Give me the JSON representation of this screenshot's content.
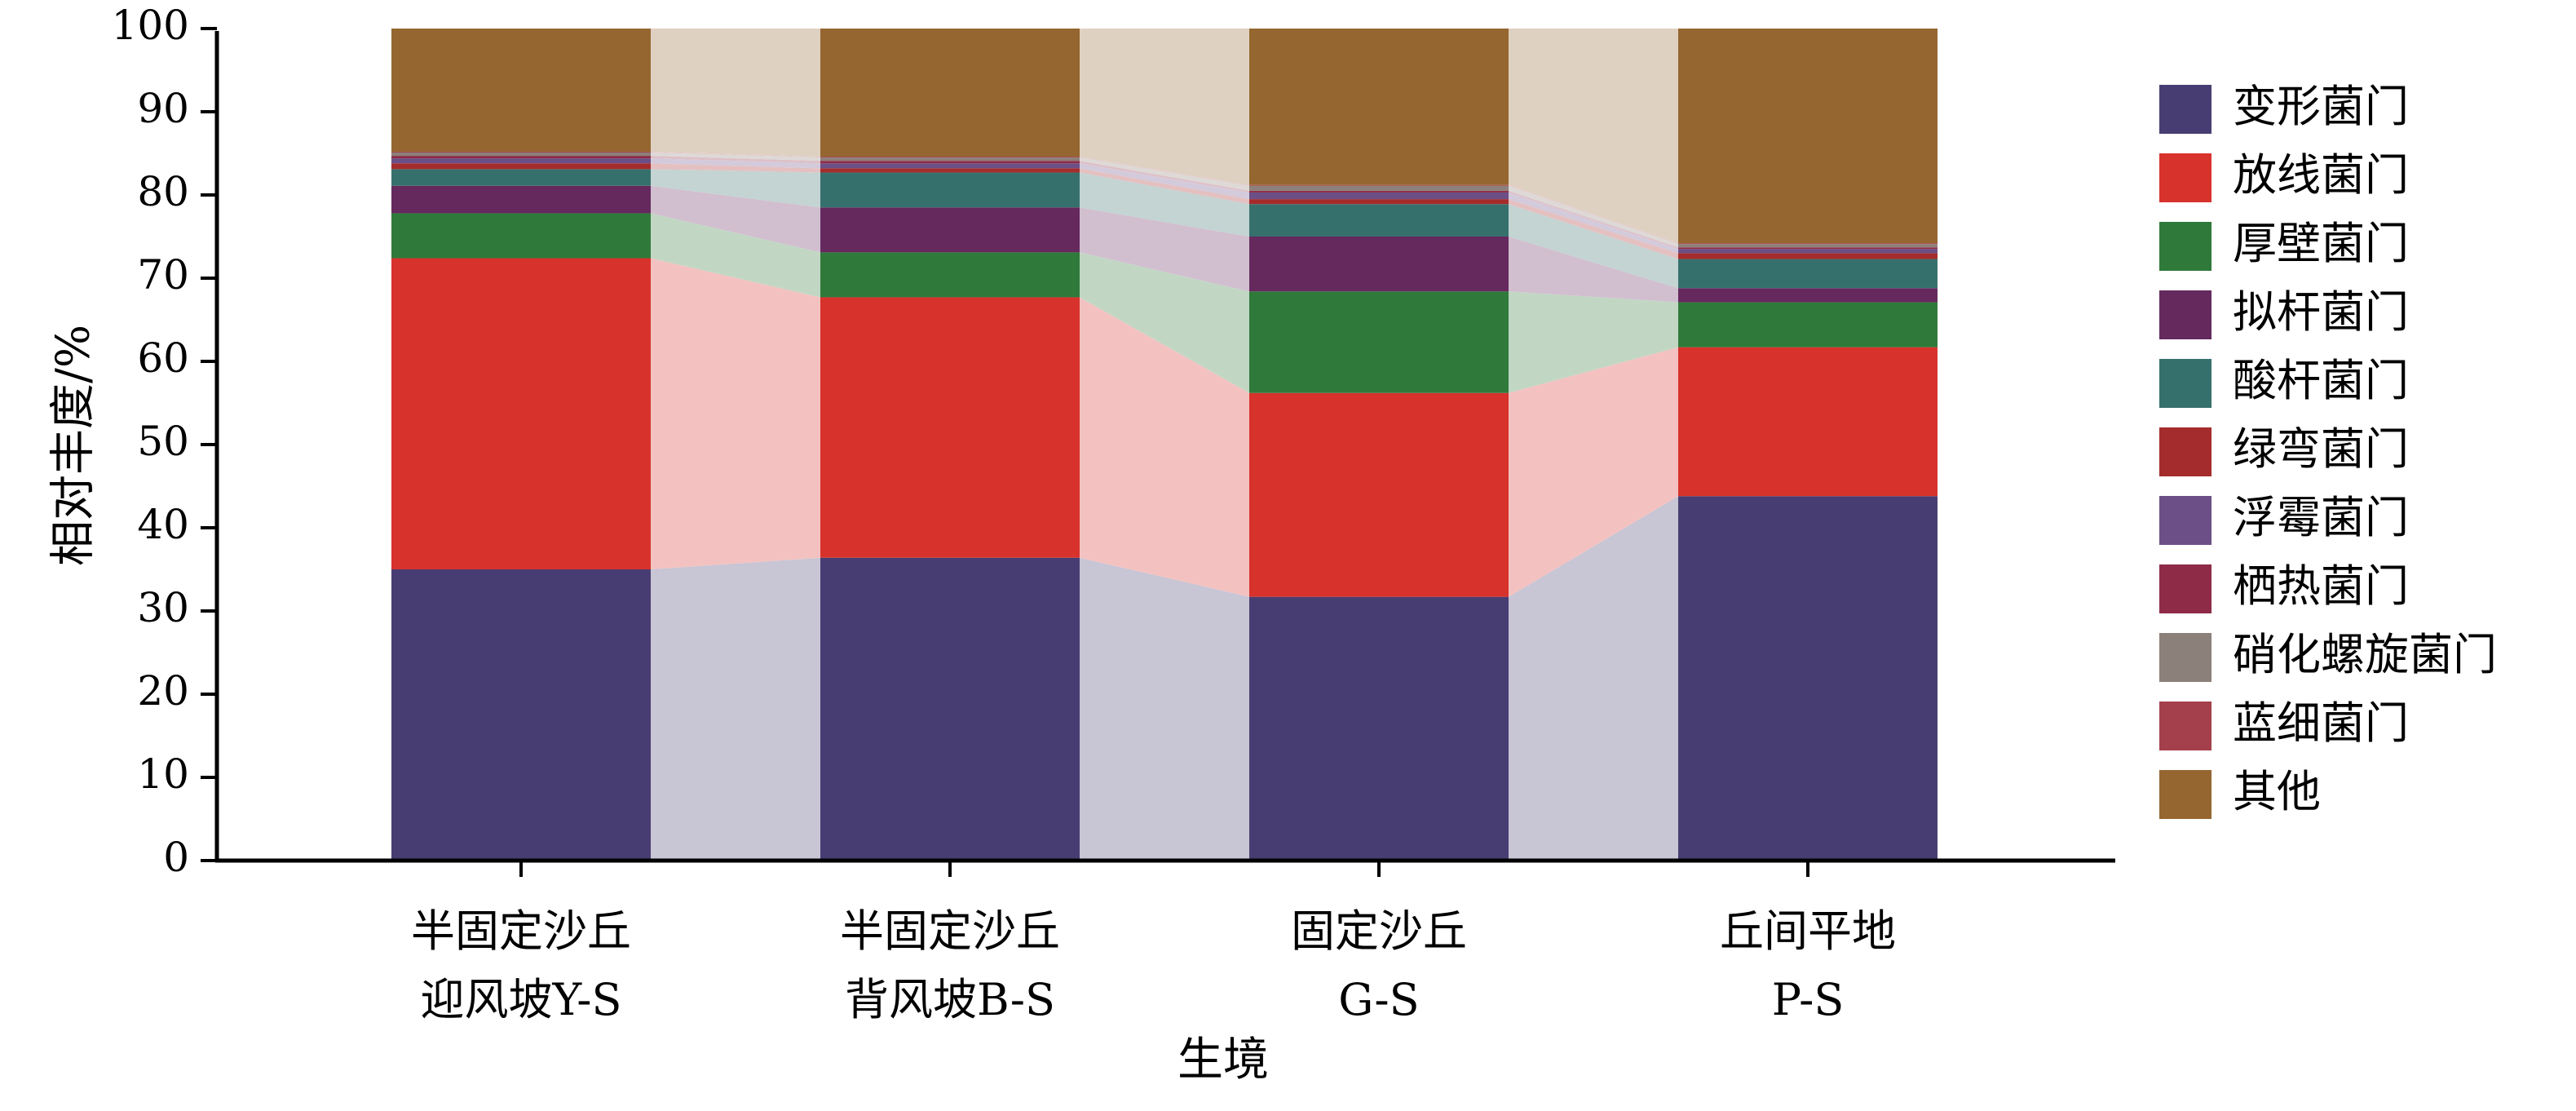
{
  "chart_data": {
    "type": "bar",
    "stacked": true,
    "xlabel": "生境",
    "ylabel": "相对丰度/%",
    "ylim": [
      0,
      100
    ],
    "yticks": [
      0,
      10,
      20,
      30,
      40,
      50,
      60,
      70,
      80,
      90,
      100
    ],
    "categories": [
      [
        "半固定沙丘",
        "迎风坡Y-S"
      ],
      [
        "半固定沙丘",
        "背风坡B-S"
      ],
      [
        "固定沙丘",
        "G-S"
      ],
      [
        "丘间平地",
        "P-S"
      ]
    ],
    "legend_position": "right",
    "series": [
      {
        "name": "变形菌门",
        "color": "#483d72",
        "values": [
          35.0,
          36.4,
          31.7,
          43.8
        ]
      },
      {
        "name": "放线菌门",
        "color": "#d7322c",
        "values": [
          37.4,
          31.3,
          24.5,
          17.9
        ]
      },
      {
        "name": "厚壁菌门",
        "color": "#2f7a3a",
        "values": [
          5.4,
          5.4,
          12.2,
          5.4
        ]
      },
      {
        "name": "拟杆菌门",
        "color": "#65295e",
        "values": [
          3.3,
          5.4,
          6.6,
          1.7
        ]
      },
      {
        "name": "酸杆菌门",
        "color": "#36706d",
        "values": [
          2.0,
          4.2,
          3.9,
          3.5
        ]
      },
      {
        "name": "绿弯菌门",
        "color": "#a52c2c",
        "values": [
          0.7,
          0.5,
          0.6,
          0.7
        ]
      },
      {
        "name": "浮霉菌门",
        "color": "#6b4f86",
        "values": [
          0.6,
          0.6,
          0.8,
          0.5
        ]
      },
      {
        "name": "栖热菌门",
        "color": "#8e2c48",
        "values": [
          0.3,
          0.3,
          0.2,
          0.2
        ]
      },
      {
        "name": "硝化螺旋菌门",
        "color": "#8c807a",
        "values": [
          0.4,
          0.4,
          0.6,
          0.4
        ]
      },
      {
        "name": "蓝细菌门",
        "color": "#a3404b",
        "values": [
          0.1,
          0.1,
          0.1,
          0.1
        ]
      },
      {
        "name": "其他",
        "color": "#956630",
        "values": [
          14.8,
          15.4,
          18.8,
          25.8
        ]
      }
    ]
  }
}
